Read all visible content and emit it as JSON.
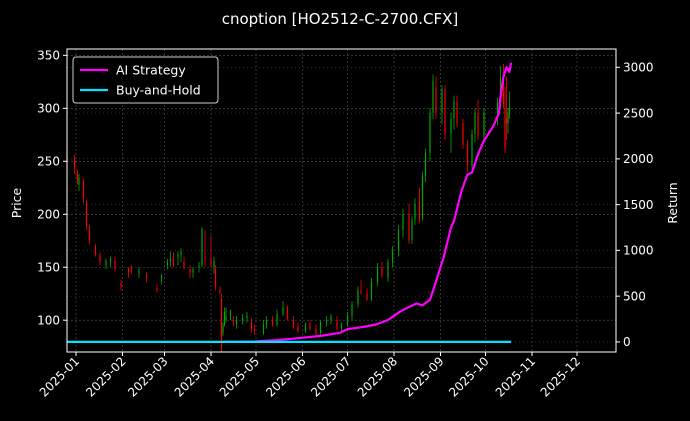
{
  "chart_data": {
    "type": "candlestick+line",
    "title": "cnoption [HO2512-C-2700.CFX]",
    "xlabel": "",
    "ylabel_left": "Price",
    "ylabel_right": "Return",
    "x_ticks": [
      "2025-01",
      "2025-02",
      "2025-03",
      "2025-04",
      "2025-05",
      "2025-06",
      "2025-07",
      "2025-08",
      "2025-09",
      "2025-10",
      "2025-11",
      "2025-12"
    ],
    "x_range": [
      "2024-12-26",
      "2025-12-27"
    ],
    "y_left_ticks": [
      100,
      150,
      200,
      250,
      300,
      350
    ],
    "y_left_range": [
      70,
      356
    ],
    "y_right_ticks": [
      0,
      500,
      1000,
      1500,
      2000,
      2500,
      3000
    ],
    "y_right_range": [
      -110,
      3200
    ],
    "grid": true,
    "legend_position": "top-left",
    "colors": {
      "background": "#000000",
      "up": "#00aa00",
      "down": "#ff0000",
      "ai_strategy": "#ff00ff",
      "buy_and_hold": "#00e5ff",
      "grid": "#555555"
    },
    "series": [
      {
        "name": "AI Strategy",
        "axis": "right",
        "points": [
          [
            "2025-04-08",
            0
          ],
          [
            "2025-04-30",
            5
          ],
          [
            "2025-05-15",
            20
          ],
          [
            "2025-06-01",
            45
          ],
          [
            "2025-06-15",
            70
          ],
          [
            "2025-06-26",
            100
          ],
          [
            "2025-07-01",
            140
          ],
          [
            "2025-07-10",
            160
          ],
          [
            "2025-07-20",
            190
          ],
          [
            "2025-07-28",
            240
          ],
          [
            "2025-08-05",
            330
          ],
          [
            "2025-08-12",
            390
          ],
          [
            "2025-08-16",
            420
          ],
          [
            "2025-08-20",
            400
          ],
          [
            "2025-08-25",
            460
          ],
          [
            "2025-08-29",
            660
          ],
          [
            "2025-09-03",
            920
          ],
          [
            "2025-09-08",
            1250
          ],
          [
            "2025-09-10",
            1320
          ],
          [
            "2025-09-15",
            1650
          ],
          [
            "2025-09-19",
            1830
          ],
          [
            "2025-09-22",
            1850
          ],
          [
            "2025-09-26",
            2050
          ],
          [
            "2025-09-30",
            2200
          ],
          [
            "2025-10-06",
            2350
          ],
          [
            "2025-10-10",
            2500
          ],
          [
            "2025-10-11",
            2680
          ],
          [
            "2025-10-13",
            2900
          ],
          [
            "2025-10-15",
            3000
          ],
          [
            "2025-10-17",
            2950
          ],
          [
            "2025-10-18",
            3050
          ]
        ]
      },
      {
        "name": "Buy-and-Hold",
        "axis": "right",
        "points": [
          [
            "2024-12-26",
            0
          ],
          [
            "2025-10-18",
            0
          ]
        ]
      }
    ],
    "candles": [
      [
        "2024-12-26",
        255,
        262,
        240,
        250
      ],
      [
        "2024-12-31",
        252,
        256,
        238,
        245
      ],
      [
        "2025-01-02",
        240,
        242,
        228,
        232
      ],
      [
        "2025-01-03",
        228,
        238,
        222,
        234
      ],
      [
        "2025-01-06",
        232,
        234,
        210,
        215
      ],
      [
        "2025-01-08",
        212,
        214,
        185,
        190
      ],
      [
        "2025-01-10",
        188,
        190,
        172,
        176
      ],
      [
        "2025-01-14",
        170,
        172,
        160,
        163
      ],
      [
        "2025-01-17",
        162,
        164,
        152,
        155
      ],
      [
        "2025-01-21",
        152,
        158,
        148,
        156
      ],
      [
        "2025-01-24",
        155,
        160,
        150,
        158
      ],
      [
        "2025-01-27",
        156,
        160,
        146,
        148
      ],
      [
        "2025-01-31",
        135,
        138,
        128,
        132
      ],
      [
        "2025-02-05",
        148,
        150,
        140,
        145
      ],
      [
        "2025-02-07",
        150,
        152,
        144,
        148
      ],
      [
        "2025-02-12",
        145,
        150,
        140,
        147
      ],
      [
        "2025-02-17",
        142,
        145,
        136,
        140
      ],
      [
        "2025-02-24",
        130,
        134,
        126,
        128
      ],
      [
        "2025-02-27",
        140,
        144,
        134,
        142
      ],
      [
        "2025-03-03",
        152,
        158,
        148,
        155
      ],
      [
        "2025-03-05",
        155,
        165,
        150,
        158
      ],
      [
        "2025-03-07",
        158,
        164,
        150,
        152
      ],
      [
        "2025-03-10",
        160,
        165,
        152,
        162
      ],
      [
        "2025-03-12",
        162,
        168,
        155,
        165
      ],
      [
        "2025-03-14",
        155,
        160,
        148,
        150
      ],
      [
        "2025-03-18",
        148,
        152,
        140,
        145
      ],
      [
        "2025-03-20",
        145,
        150,
        140,
        148
      ],
      [
        "2025-03-24",
        150,
        155,
        145,
        152
      ],
      [
        "2025-03-26",
        152,
        188,
        150,
        186
      ],
      [
        "2025-03-28",
        160,
        185,
        150,
        158
      ],
      [
        "2025-04-01",
        158,
        180,
        150,
        152
      ],
      [
        "2025-04-03",
        150,
        160,
        144,
        156
      ],
      [
        "2025-04-04",
        148,
        152,
        128,
        132
      ],
      [
        "2025-04-07",
        128,
        132,
        124,
        126
      ],
      [
        "2025-04-08",
        120,
        125,
        70,
        75
      ],
      [
        "2025-04-09",
        88,
        98,
        85,
        96
      ],
      [
        "2025-04-10",
        96,
        112,
        94,
        108
      ],
      [
        "2025-04-11",
        100,
        112,
        98,
        104
      ],
      [
        "2025-04-14",
        104,
        110,
        100,
        108
      ],
      [
        "2025-04-16",
        100,
        104,
        94,
        98
      ],
      [
        "2025-04-18",
        96,
        104,
        92,
        100
      ],
      [
        "2025-04-22",
        100,
        106,
        96,
        102
      ],
      [
        "2025-04-25",
        102,
        108,
        98,
        104
      ],
      [
        "2025-04-28",
        98,
        102,
        88,
        92
      ],
      [
        "2025-04-30",
        92,
        96,
        86,
        90
      ],
      [
        "2025-05-06",
        88,
        100,
        86,
        96
      ],
      [
        "2025-05-08",
        96,
        104,
        92,
        100
      ],
      [
        "2025-05-12",
        100,
        104,
        94,
        96
      ],
      [
        "2025-05-15",
        96,
        110,
        94,
        106
      ],
      [
        "2025-05-19",
        106,
        118,
        104,
        112
      ],
      [
        "2025-05-22",
        112,
        114,
        100,
        102
      ],
      [
        "2025-05-26",
        100,
        104,
        92,
        94
      ],
      [
        "2025-05-29",
        94,
        98,
        88,
        90
      ],
      [
        "2025-06-03",
        90,
        98,
        88,
        96
      ],
      [
        "2025-06-06",
        96,
        100,
        90,
        92
      ],
      [
        "2025-06-10",
        92,
        96,
        86,
        88
      ],
      [
        "2025-06-13",
        88,
        100,
        86,
        98
      ],
      [
        "2025-06-17",
        98,
        104,
        94,
        100
      ],
      [
        "2025-06-20",
        100,
        106,
        96,
        104
      ],
      [
        "2025-06-24",
        100,
        104,
        90,
        92
      ],
      [
        "2025-06-27",
        92,
        98,
        88,
        96
      ],
      [
        "2025-07-01",
        96,
        108,
        94,
        104
      ],
      [
        "2025-07-04",
        104,
        118,
        100,
        115
      ],
      [
        "2025-07-08",
        115,
        132,
        112,
        128
      ],
      [
        "2025-07-10",
        128,
        138,
        124,
        126
      ],
      [
        "2025-07-14",
        126,
        130,
        118,
        120
      ],
      [
        "2025-07-17",
        120,
        140,
        118,
        136
      ],
      [
        "2025-07-21",
        136,
        154,
        132,
        150
      ],
      [
        "2025-07-24",
        150,
        155,
        140,
        142
      ],
      [
        "2025-07-28",
        140,
        158,
        136,
        155
      ],
      [
        "2025-07-31",
        155,
        170,
        150,
        166
      ],
      [
        "2025-08-04",
        166,
        190,
        160,
        185
      ],
      [
        "2025-08-07",
        185,
        205,
        178,
        200
      ],
      [
        "2025-08-11",
        200,
        210,
        172,
        175
      ],
      [
        "2025-08-13",
        176,
        198,
        172,
        195
      ],
      [
        "2025-08-15",
        195,
        215,
        190,
        210
      ],
      [
        "2025-08-18",
        212,
        225,
        192,
        196
      ],
      [
        "2025-08-20",
        196,
        240,
        194,
        236
      ],
      [
        "2025-08-22",
        236,
        262,
        230,
        258
      ],
      [
        "2025-08-25",
        258,
        300,
        250,
        296
      ],
      [
        "2025-08-27",
        296,
        332,
        290,
        326
      ],
      [
        "2025-08-29",
        320,
        330,
        290,
        296
      ],
      [
        "2025-09-02",
        296,
        322,
        285,
        318
      ],
      [
        "2025-09-04",
        318,
        322,
        270,
        276
      ],
      [
        "2025-09-08",
        276,
        296,
        258,
        290
      ],
      [
        "2025-09-10",
        290,
        312,
        280,
        306
      ],
      [
        "2025-09-12",
        306,
        312,
        282,
        286
      ],
      [
        "2025-09-16",
        286,
        290,
        262,
        266
      ],
      [
        "2025-09-19",
        266,
        270,
        240,
        246
      ],
      [
        "2025-09-22",
        246,
        280,
        240,
        276
      ],
      [
        "2025-09-24",
        276,
        300,
        268,
        296
      ],
      [
        "2025-09-26",
        296,
        308,
        270,
        274
      ],
      [
        "2025-09-30",
        274,
        300,
        268,
        296
      ],
      [
        "2025-10-09",
        296,
        310,
        284,
        306
      ],
      [
        "2025-10-11",
        306,
        340,
        300,
        330
      ],
      [
        "2025-10-13",
        330,
        342,
        300,
        304
      ],
      [
        "2025-10-14",
        300,
        320,
        258,
        262
      ],
      [
        "2025-10-15",
        290,
        330,
        270,
        286
      ],
      [
        "2025-10-16",
        286,
        300,
        276,
        296
      ],
      [
        "2025-10-17",
        296,
        316,
        290,
        302
      ]
    ]
  }
}
